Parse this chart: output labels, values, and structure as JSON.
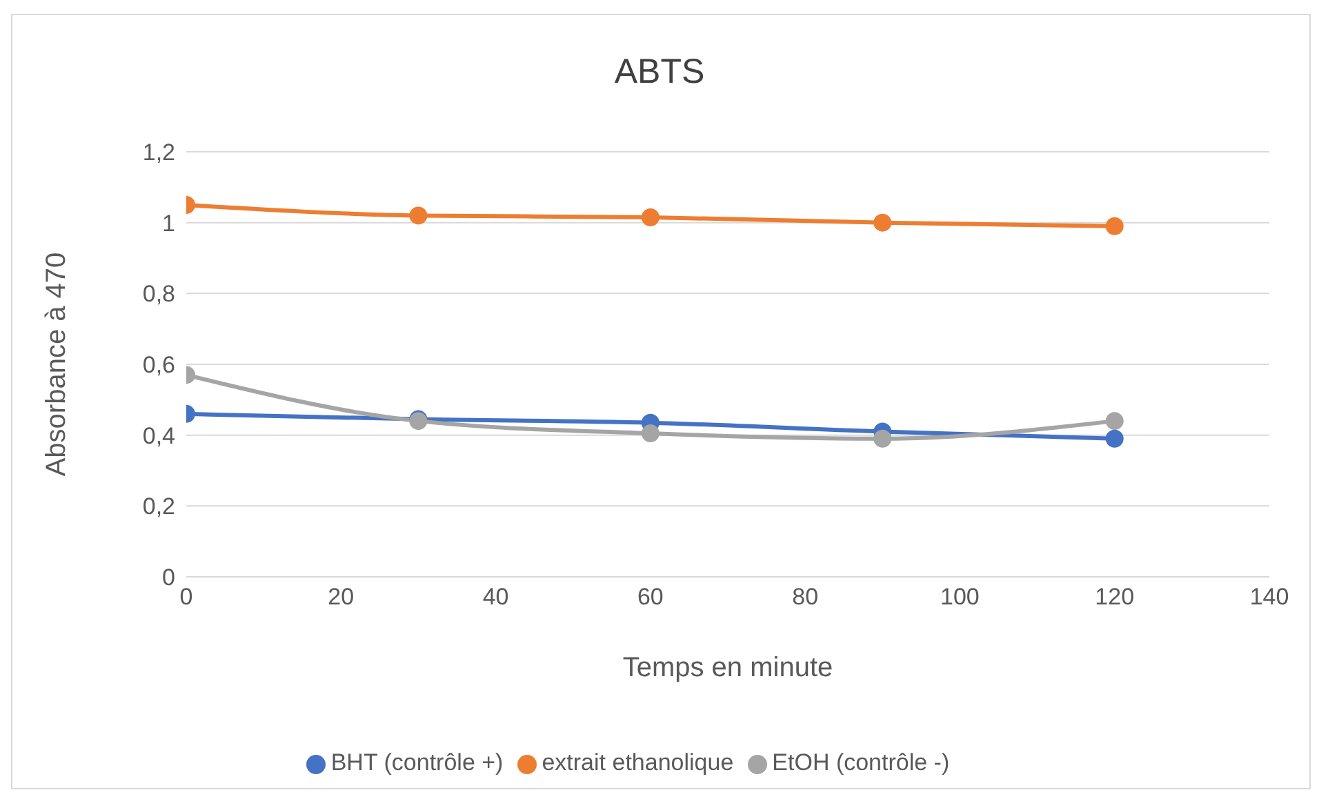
{
  "chart_data": {
    "type": "line",
    "title": "ABTS",
    "xlabel": "Temps en minute",
    "ylabel": "Absorbance à 470",
    "x": [
      0,
      30,
      60,
      90,
      120
    ],
    "series": [
      {
        "name": "BHT (contrôle +)",
        "color": "#4472c4",
        "values": [
          0.46,
          0.445,
          0.435,
          0.41,
          0.39
        ]
      },
      {
        "name": "extrait ethanolique",
        "color": "#ed7d31",
        "values": [
          1.05,
          1.02,
          1.015,
          1.0,
          0.99
        ]
      },
      {
        "name": "EtOH (contrôle -)",
        "color": "#a5a5a5",
        "values": [
          0.57,
          0.44,
          0.405,
          0.39,
          0.44
        ]
      }
    ],
    "xlim": [
      0,
      140
    ],
    "xticks": [
      0,
      20,
      40,
      60,
      80,
      100,
      120,
      140
    ],
    "ylim": [
      0,
      1.2
    ],
    "yticks": [
      0,
      {
        "value": 0.2,
        "label": "0,2"
      },
      {
        "value": 0.4,
        "label": "0,4"
      },
      {
        "value": 0.6,
        "label": "0,6"
      },
      {
        "value": 0.8,
        "label": "0,8"
      },
      1,
      {
        "value": 1.2,
        "label": "1,2"
      }
    ],
    "grid": "y",
    "legend": "bottom",
    "marker": "circle",
    "line_style": "solid"
  }
}
